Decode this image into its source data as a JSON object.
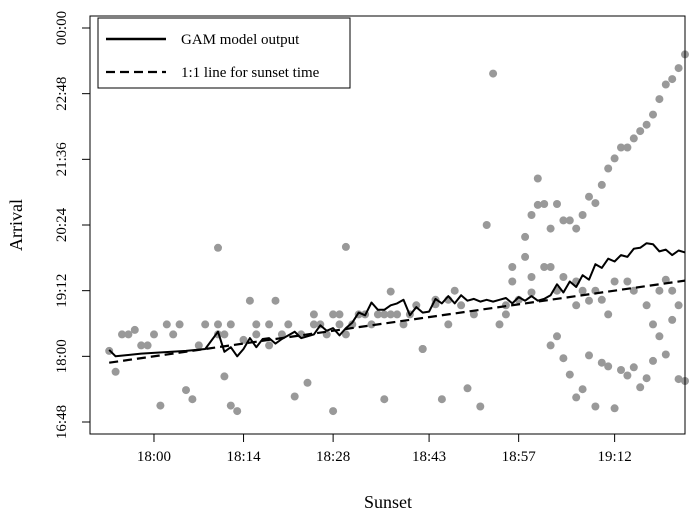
{
  "chart_data": {
    "type": "scatter",
    "title": "",
    "xlabel": "Sunset",
    "ylabel": "Arrival",
    "x_unit": "time of day (hh:mm)",
    "y_unit": "time of day (hh:mm)",
    "xlim": [
      "17:50",
      "19:23"
    ],
    "ylim": [
      "16:48",
      "00:00"
    ],
    "x_ticks": [
      "18:00",
      "18:14",
      "18:28",
      "18:43",
      "18:57",
      "19:12"
    ],
    "y_ticks": [
      "16:48",
      "18:00",
      "19:12",
      "20:24",
      "21:36",
      "22:48",
      "00:00"
    ],
    "grid": false,
    "legend": {
      "position": "top-left",
      "entries": [
        {
          "label": "GAM model output",
          "style": "solid"
        },
        {
          "label": "1:1 line for sunset time",
          "style": "dashed"
        }
      ]
    },
    "colors": {
      "points": "#999999",
      "model": "#000000",
      "reference": "#000000"
    },
    "series": [
      {
        "kind": "points",
        "points": [
          [
            "17:53",
            "18:06"
          ],
          [
            "17:54",
            "17:43"
          ],
          [
            "17:55",
            "18:24"
          ],
          [
            "17:56",
            "18:24"
          ],
          [
            "17:57",
            "18:29"
          ],
          [
            "17:58",
            "18:12"
          ],
          [
            "17:59",
            "18:12"
          ],
          [
            "18:00",
            "18:24"
          ],
          [
            "18:01",
            "17:06"
          ],
          [
            "18:02",
            "18:35"
          ],
          [
            "18:03",
            "18:24"
          ],
          [
            "18:04",
            "18:35"
          ],
          [
            "18:05",
            "17:23"
          ],
          [
            "18:06",
            "17:13"
          ],
          [
            "18:07",
            "18:12"
          ],
          [
            "18:08",
            "18:35"
          ],
          [
            "18:10",
            "18:24"
          ],
          [
            "18:10",
            "19:59"
          ],
          [
            "18:10",
            "18:35"
          ],
          [
            "18:11",
            "17:38"
          ],
          [
            "18:11",
            "18:24"
          ],
          [
            "18:12",
            "18:35"
          ],
          [
            "18:12",
            "17:06"
          ],
          [
            "18:13",
            "17:00"
          ],
          [
            "18:14",
            "18:18"
          ],
          [
            "18:15",
            "19:01"
          ],
          [
            "18:16",
            "18:24"
          ],
          [
            "18:16",
            "18:35"
          ],
          [
            "18:18",
            "18:12"
          ],
          [
            "18:18",
            "18:35"
          ],
          [
            "18:19",
            "19:01"
          ],
          [
            "18:20",
            "18:24"
          ],
          [
            "18:21",
            "18:35"
          ],
          [
            "18:22",
            "17:16"
          ],
          [
            "18:23",
            "18:24"
          ],
          [
            "18:24",
            "17:31"
          ],
          [
            "18:25",
            "18:35"
          ],
          [
            "18:25",
            "18:46"
          ],
          [
            "18:26",
            "18:35"
          ],
          [
            "18:27",
            "18:24"
          ],
          [
            "18:28",
            "18:46"
          ],
          [
            "18:28",
            "17:00"
          ],
          [
            "18:29",
            "18:35"
          ],
          [
            "18:29",
            "18:46"
          ],
          [
            "18:30",
            "18:24"
          ],
          [
            "18:30",
            "20:00"
          ],
          [
            "18:31",
            "18:35"
          ],
          [
            "18:32",
            "18:46"
          ],
          [
            "18:33",
            "18:46"
          ],
          [
            "18:34",
            "18:35"
          ],
          [
            "18:35",
            "18:46"
          ],
          [
            "18:36",
            "18:46"
          ],
          [
            "18:36",
            "17:13"
          ],
          [
            "18:37",
            "18:46"
          ],
          [
            "18:37",
            "19:11"
          ],
          [
            "18:38",
            "18:46"
          ],
          [
            "18:39",
            "18:35"
          ],
          [
            "18:40",
            "18:46"
          ],
          [
            "18:41",
            "18:56"
          ],
          [
            "18:42",
            "18:08"
          ],
          [
            "18:42",
            "18:08"
          ],
          [
            "18:44",
            "19:02"
          ],
          [
            "18:44",
            "18:57"
          ],
          [
            "18:45",
            "17:13"
          ],
          [
            "18:46",
            "18:35"
          ],
          [
            "18:46",
            "19:02"
          ],
          [
            "18:47",
            "19:12"
          ],
          [
            "18:48",
            "18:56"
          ],
          [
            "18:49",
            "17:25"
          ],
          [
            "18:50",
            "18:46"
          ],
          [
            "18:51",
            "17:05"
          ],
          [
            "18:52",
            "20:24"
          ],
          [
            "18:53",
            "23:10"
          ],
          [
            "18:54",
            "18:35"
          ],
          [
            "18:55",
            "18:46"
          ],
          [
            "18:55",
            "18:56"
          ],
          [
            "18:56",
            "19:22"
          ],
          [
            "18:56",
            "19:38"
          ],
          [
            "18:57",
            "19:02"
          ],
          [
            "18:58",
            "19:49"
          ],
          [
            "18:59",
            "19:10"
          ],
          [
            "18:59",
            "19:27"
          ],
          [
            "19:00",
            "21:15"
          ],
          [
            "19:01",
            "19:38"
          ],
          [
            "19:02",
            "19:38"
          ],
          [
            "19:03",
            "19:12"
          ],
          [
            "19:04",
            "19:27"
          ],
          [
            "19:06",
            "18:56"
          ],
          [
            "19:06",
            "19:22"
          ],
          [
            "19:07",
            "19:12"
          ],
          [
            "19:08",
            "19:01"
          ],
          [
            "19:09",
            "19:12"
          ],
          [
            "19:10",
            "19:02"
          ],
          [
            "19:11",
            "18:46"
          ],
          [
            "19:12",
            "19:22"
          ],
          [
            "19:14",
            "19:22"
          ],
          [
            "19:15",
            "19:12"
          ],
          [
            "19:17",
            "18:56"
          ],
          [
            "19:18",
            "18:35"
          ],
          [
            "19:19",
            "19:12"
          ],
          [
            "19:20",
            "19:24"
          ],
          [
            "19:21",
            "19:12"
          ],
          [
            "19:22",
            "18:56"
          ]
        ]
      },
      {
        "kind": "band",
        "points": [
          [
            "19:02",
            "18:12"
          ],
          [
            "19:03",
            "18:22"
          ],
          [
            "19:04",
            "17:58"
          ],
          [
            "19:05",
            "17:40"
          ],
          [
            "19:06",
            "17:15"
          ],
          [
            "19:07",
            "17:24"
          ],
          [
            "19:08",
            "18:01"
          ],
          [
            "19:09",
            "17:05"
          ],
          [
            "19:10",
            "17:53"
          ],
          [
            "19:11",
            "17:49"
          ],
          [
            "19:12",
            "17:03"
          ],
          [
            "19:13",
            "17:45"
          ],
          [
            "19:14",
            "17:39"
          ],
          [
            "19:15",
            "17:48"
          ],
          [
            "19:16",
            "17:26"
          ],
          [
            "19:17",
            "17:36"
          ],
          [
            "19:18",
            "17:55"
          ],
          [
            "19:19",
            "18:22"
          ],
          [
            "19:20",
            "18:02"
          ],
          [
            "19:21",
            "18:40"
          ],
          [
            "19:22",
            "17:35"
          ],
          [
            "19:23",
            "17:33"
          ]
        ]
      },
      {
        "kind": "upper-cloud",
        "points": [
          [
            "18:58",
            "20:11"
          ],
          [
            "18:59",
            "20:35"
          ],
          [
            "19:00",
            "20:46"
          ],
          [
            "19:01",
            "20:47"
          ],
          [
            "19:02",
            "20:20"
          ],
          [
            "19:03",
            "20:47"
          ],
          [
            "19:04",
            "20:29"
          ],
          [
            "19:05",
            "20:29"
          ],
          [
            "19:06",
            "20:20"
          ],
          [
            "19:07",
            "20:35"
          ],
          [
            "19:08",
            "20:55"
          ],
          [
            "19:09",
            "20:48"
          ],
          [
            "19:10",
            "21:08"
          ],
          [
            "19:11",
            "21:26"
          ],
          [
            "19:12",
            "21:37"
          ],
          [
            "19:13",
            "21:49"
          ],
          [
            "19:14",
            "21:49"
          ],
          [
            "19:15",
            "21:59"
          ],
          [
            "19:16",
            "22:07"
          ],
          [
            "19:17",
            "22:14"
          ],
          [
            "19:18",
            "22:25"
          ],
          [
            "19:19",
            "22:42"
          ],
          [
            "19:20",
            "22:58"
          ],
          [
            "19:21",
            "23:04"
          ],
          [
            "19:22",
            "23:16"
          ],
          [
            "19:23",
            "23:31"
          ]
        ]
      },
      {
        "kind": "model",
        "name": "GAM model output",
        "points": [
          [
            "17:53",
            "18:07"
          ],
          [
            "17:54",
            "18:00"
          ],
          [
            "17:58",
            "18:03"
          ],
          [
            "18:05",
            "18:06"
          ],
          [
            "18:08",
            "18:08"
          ],
          [
            "18:10",
            "18:27"
          ],
          [
            "18:11",
            "18:05"
          ],
          [
            "18:12",
            "18:10"
          ],
          [
            "18:13",
            "18:00"
          ],
          [
            "18:14",
            "18:08"
          ],
          [
            "18:15",
            "18:20"
          ],
          [
            "18:16",
            "18:10"
          ],
          [
            "18:17",
            "18:19"
          ],
          [
            "18:18",
            "18:20"
          ],
          [
            "18:19",
            "18:14"
          ],
          [
            "18:20",
            "18:19"
          ],
          [
            "18:21",
            "18:23"
          ],
          [
            "18:22",
            "18:27"
          ],
          [
            "18:23",
            "18:20"
          ],
          [
            "18:24",
            "18:22"
          ],
          [
            "18:25",
            "18:24"
          ],
          [
            "18:26",
            "18:34"
          ],
          [
            "18:27",
            "18:28"
          ],
          [
            "18:28",
            "18:31"
          ],
          [
            "18:29",
            "18:23"
          ],
          [
            "18:30",
            "18:31"
          ],
          [
            "18:31",
            "18:37"
          ],
          [
            "18:32",
            "18:48"
          ],
          [
            "18:33",
            "18:45"
          ],
          [
            "18:34",
            "18:59"
          ],
          [
            "18:35",
            "18:51"
          ],
          [
            "18:36",
            "18:51"
          ],
          [
            "18:37",
            "18:56"
          ],
          [
            "18:38",
            "18:58"
          ],
          [
            "18:39",
            "19:02"
          ],
          [
            "18:40",
            "18:45"
          ],
          [
            "18:41",
            "18:54"
          ],
          [
            "18:42",
            "18:48"
          ],
          [
            "18:43",
            "18:49"
          ],
          [
            "18:44",
            "19:03"
          ],
          [
            "18:45",
            "18:58"
          ],
          [
            "18:46",
            "19:06"
          ],
          [
            "18:47",
            "18:58"
          ],
          [
            "18:48",
            "19:07"
          ],
          [
            "18:49",
            "19:01"
          ],
          [
            "18:50",
            "19:03"
          ],
          [
            "18:51",
            "19:00"
          ],
          [
            "18:52",
            "19:02"
          ],
          [
            "18:53",
            "19:00"
          ],
          [
            "18:54",
            "19:02"
          ],
          [
            "18:55",
            "19:04"
          ],
          [
            "18:56",
            "18:58"
          ],
          [
            "18:57",
            "19:05"
          ],
          [
            "18:58",
            "19:01"
          ],
          [
            "18:59",
            "19:06"
          ],
          [
            "19:00",
            "19:01"
          ],
          [
            "19:01",
            "19:03"
          ],
          [
            "19:02",
            "19:07"
          ],
          [
            "19:03",
            "19:19"
          ],
          [
            "19:04",
            "19:10"
          ],
          [
            "19:05",
            "19:22"
          ],
          [
            "19:06",
            "19:16"
          ],
          [
            "19:07",
            "19:29"
          ],
          [
            "19:08",
            "19:24"
          ],
          [
            "19:09",
            "19:41"
          ],
          [
            "19:10",
            "19:37"
          ],
          [
            "19:11",
            "19:47"
          ],
          [
            "19:12",
            "19:44"
          ],
          [
            "19:13",
            "19:51"
          ],
          [
            "19:14",
            "19:49"
          ],
          [
            "19:15",
            "19:58"
          ],
          [
            "19:16",
            "19:59"
          ],
          [
            "19:17",
            "20:04"
          ],
          [
            "19:18",
            "20:03"
          ],
          [
            "19:19",
            "19:55"
          ],
          [
            "19:20",
            "19:57"
          ],
          [
            "19:21",
            "19:51"
          ],
          [
            "19:22",
            "19:56"
          ],
          [
            "19:23",
            "19:54"
          ]
        ]
      },
      {
        "kind": "reference",
        "name": "1:1 line for sunset time",
        "points": [
          [
            "17:53",
            "17:53"
          ],
          [
            "19:23",
            "19:23"
          ]
        ]
      }
    ]
  }
}
